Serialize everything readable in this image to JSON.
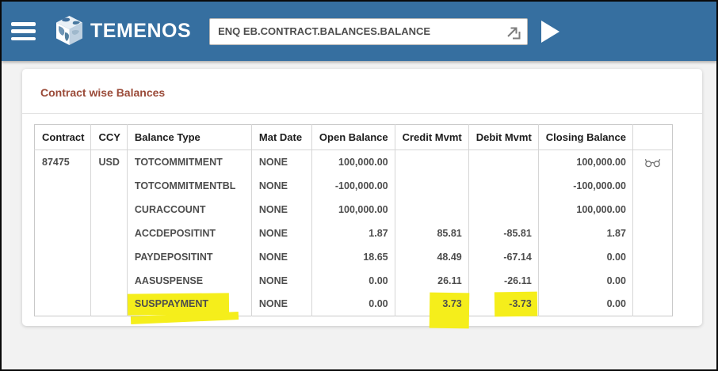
{
  "header": {
    "logo_text": "TEMENOS",
    "command_input": {
      "value": "ENQ EB.CONTRACT.BALANCES.BALANCE",
      "placeholder": ""
    }
  },
  "icons": {
    "menu": "hamburger-icon",
    "logo": "temenos-globe-cube-icon",
    "command_launch": "launch-arrow-icon",
    "run": "play-icon",
    "drilldown": "binoculars-icon"
  },
  "colors": {
    "topbar_bg": "#366FA0",
    "title_text": "#9A4A38",
    "highlight": "#F5EE1B",
    "table_text": "#4D4D4D",
    "header_text": "#1C1C1C"
  },
  "main": {
    "title": "Contract wise Balances"
  },
  "table": {
    "columns": [
      {
        "key": "contract",
        "label": "Contract"
      },
      {
        "key": "ccy",
        "label": "CCY"
      },
      {
        "key": "balance_type",
        "label": "Balance Type"
      },
      {
        "key": "mat_date",
        "label": "Mat Date"
      },
      {
        "key": "open_balance",
        "label": "Open Balance"
      },
      {
        "key": "credit_mvmt",
        "label": "Credit Mvmt"
      },
      {
        "key": "debit_mvmt",
        "label": "Debit Mvmt"
      },
      {
        "key": "closing_balance",
        "label": "Closing Balance"
      },
      {
        "key": "action",
        "label": ""
      }
    ],
    "rows": [
      {
        "contract": "87475",
        "ccy": "USD",
        "balance_type": "TOTCOMMITMENT",
        "mat_date": "NONE",
        "open_balance": "100,000.00",
        "credit_mvmt": "",
        "debit_mvmt": "",
        "closing_balance": "100,000.00",
        "drilldown": true
      },
      {
        "contract": "",
        "ccy": "",
        "balance_type": "TOTCOMMITMENTBL",
        "mat_date": "NONE",
        "open_balance": "-100,000.00",
        "credit_mvmt": "",
        "debit_mvmt": "",
        "closing_balance": "-100,000.00",
        "drilldown": false
      },
      {
        "contract": "",
        "ccy": "",
        "balance_type": "CURACCOUNT",
        "mat_date": "NONE",
        "open_balance": "100,000.00",
        "credit_mvmt": "",
        "debit_mvmt": "",
        "closing_balance": "100,000.00",
        "drilldown": false
      },
      {
        "contract": "",
        "ccy": "",
        "balance_type": "ACCDEPOSITINT",
        "mat_date": "NONE",
        "open_balance": "1.87",
        "credit_mvmt": "85.81",
        "debit_mvmt": "-85.81",
        "closing_balance": "1.87",
        "drilldown": false
      },
      {
        "contract": "",
        "ccy": "",
        "balance_type": "PAYDEPOSITINT",
        "mat_date": "NONE",
        "open_balance": "18.65",
        "credit_mvmt": "48.49",
        "debit_mvmt": "-67.14",
        "closing_balance": "0.00",
        "drilldown": false
      },
      {
        "contract": "",
        "ccy": "",
        "balance_type": "AASUSPENSE",
        "mat_date": "NONE",
        "open_balance": "0.00",
        "credit_mvmt": "26.11",
        "debit_mvmt": "-26.11",
        "closing_balance": "0.00",
        "drilldown": false
      },
      {
        "contract": "",
        "ccy": "",
        "balance_type": "SUSPPAYMENT",
        "mat_date": "NONE",
        "open_balance": "0.00",
        "credit_mvmt": "3.73",
        "debit_mvmt": "-3.73",
        "closing_balance": "0.00",
        "drilldown": false,
        "highlighted": [
          "balance_type",
          "credit_mvmt",
          "debit_mvmt"
        ]
      }
    ]
  }
}
